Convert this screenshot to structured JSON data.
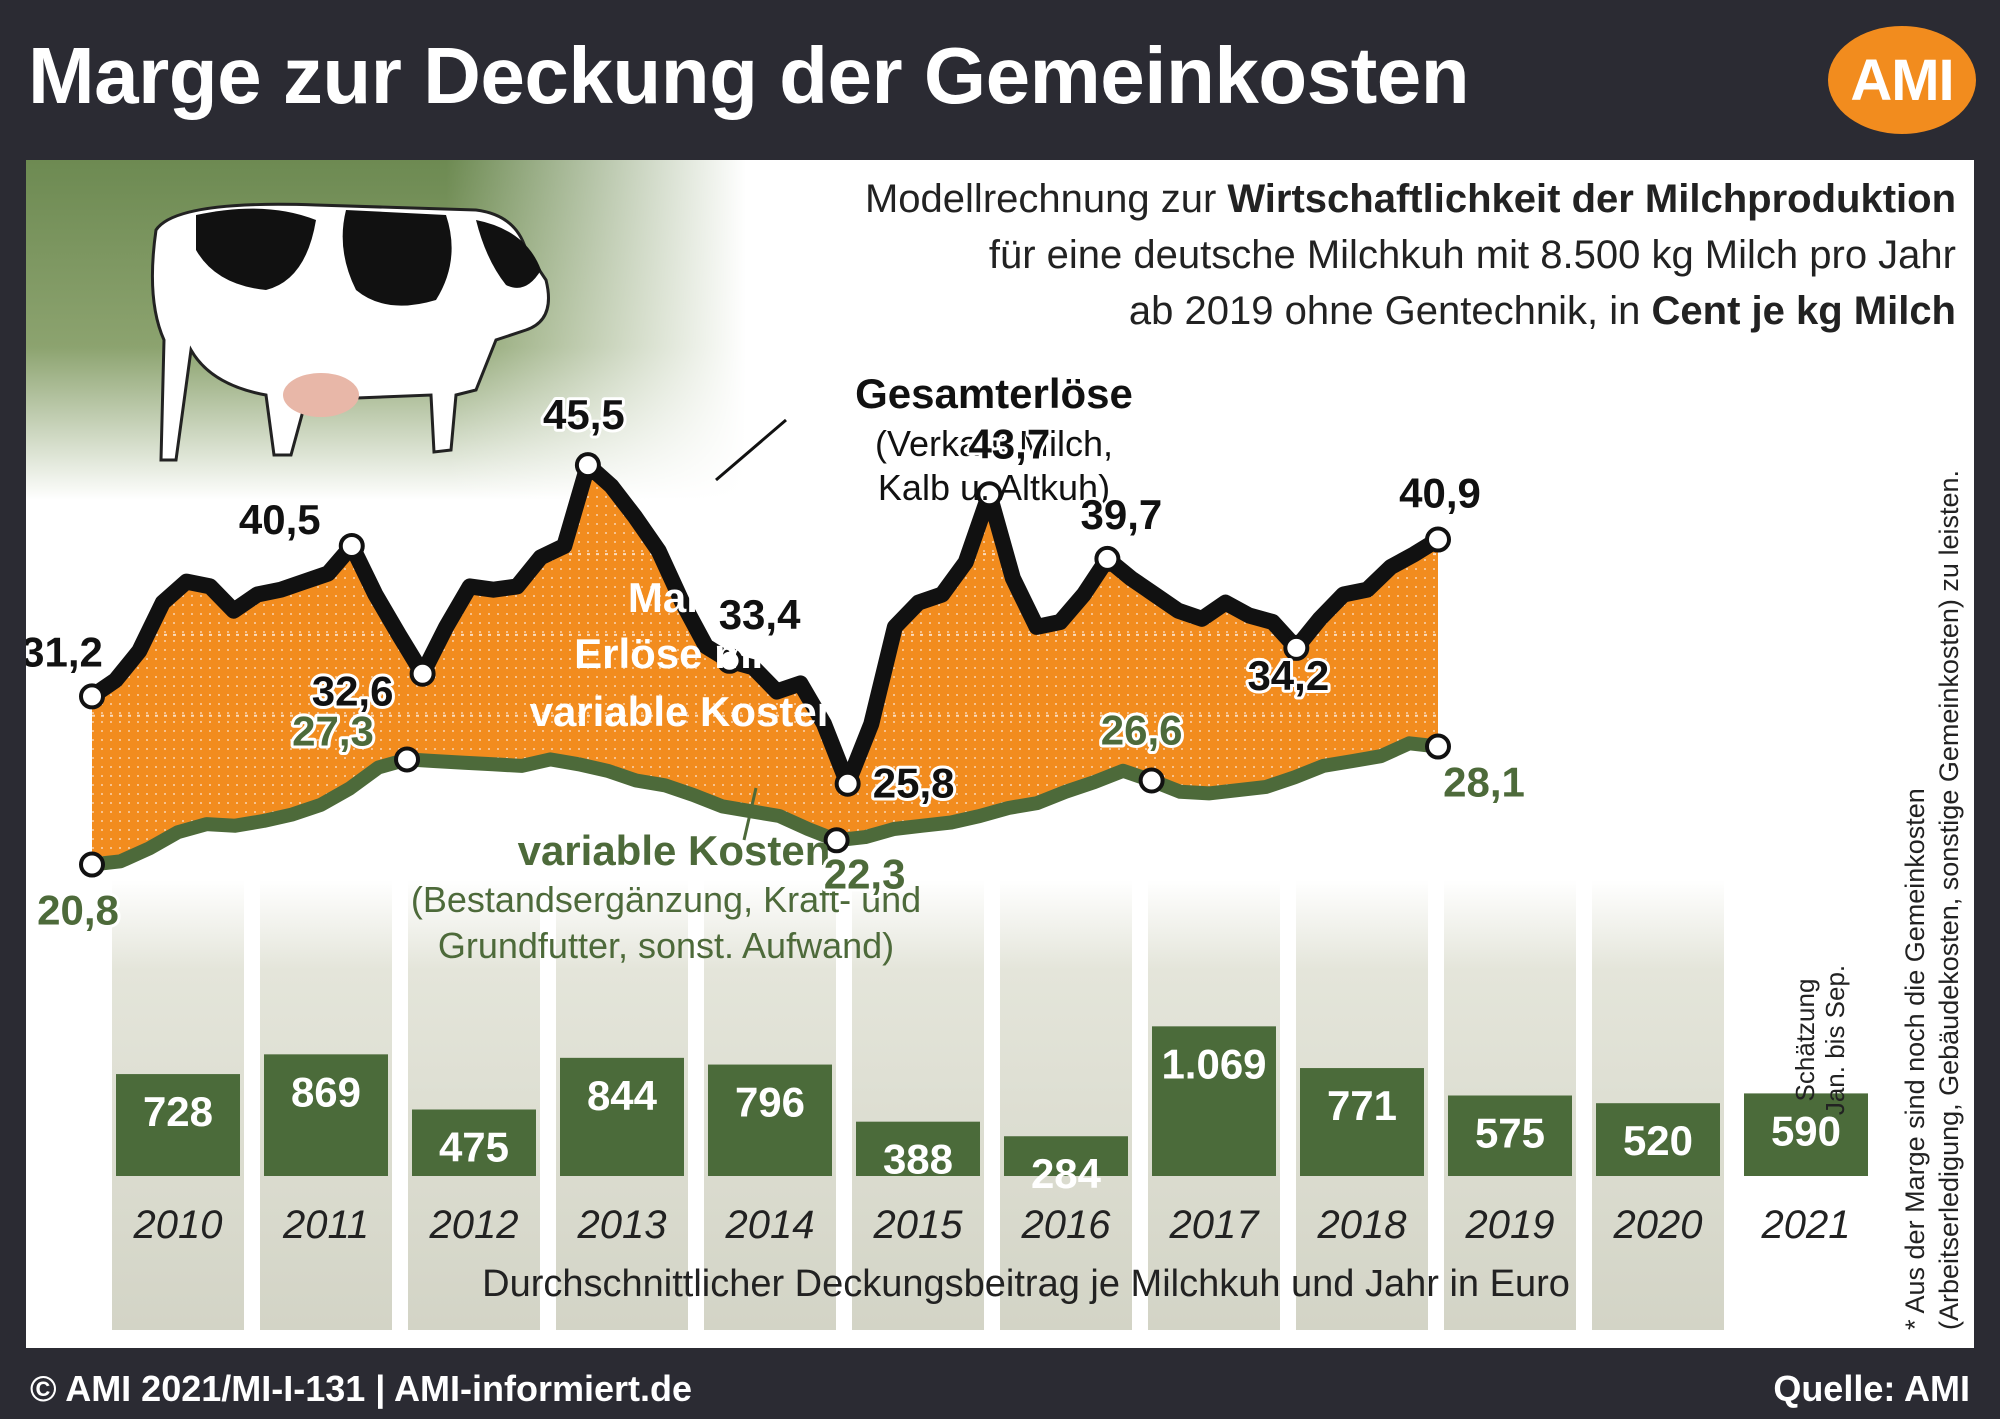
{
  "header": {
    "title": "Marge zur Deckung der Gemeinkosten",
    "logo_text": "AMI",
    "logo_color": "#f28c1e"
  },
  "subtitle": {
    "line1_normal": "Modellrechnung zur ",
    "line1_bold": "Wirtschaftlichkeit der Milchproduktion",
    "line2": "für eine deutsche Milchkuh mit 8.500 kg Milch pro Jahr",
    "line3_normal": "ab 2019 ohne Gentechnik, in ",
    "line3_bold": "Cent je kg Milch"
  },
  "annotations": {
    "revenue_title": "Gesamterlöse",
    "revenue_sub1": "(Verkauf Milch,",
    "revenue_sub2": "Kalb u. Altkuh)",
    "margin_line1": "Marge* =",
    "margin_line2": "Erlöse minus",
    "margin_line3": "variable Kosten",
    "cost_title": "variable Kosten",
    "cost_sub1": "(Bestandsergänzung, Kraft- und",
    "cost_sub2": "Grundfutter, sonst. Aufwand)",
    "bars_caption": "Durchschnittlicher Deckungsbeitrag je Milchkuh und Jahr in Euro",
    "estimate_line1": "Schätzung",
    "estimate_line2": "Jan. bis Sep.",
    "footnote_line1": "* Aus der Marge sind noch die Gemeinkosten",
    "footnote_line2": "(Arbeitserledigung, Gebäudekosten, sonstige Gemeinkosten) zu leisten."
  },
  "footer": {
    "left": "© AMI 2021/MI-I-131 | AMI-informiert.de",
    "right": "Quelle: AMI"
  },
  "colors": {
    "background": "#2b2b33",
    "margin_fill": "#f28c1e",
    "revenue_line": "#111111",
    "cost_line": "#4d6a3a",
    "bar_fill": "#4b6b3a",
    "year_column": "#d7d8cc"
  },
  "chart_data": [
    {
      "type": "area",
      "title": "",
      "xlabel": "",
      "ylabel": "",
      "x_range": [
        "Jan 2010",
        "Sep 2021"
      ],
      "series": [
        {
          "name": "Gesamterlöse",
          "values": [
            31.2,
            32.2,
            34.0,
            37.0,
            38.3,
            38.0,
            36.5,
            37.5,
            37.8,
            38.3,
            38.8,
            40.5,
            37.5,
            35.0,
            32.6,
            35.5,
            38.0,
            37.8,
            38.0,
            39.8,
            40.5,
            45.5,
            44.2,
            42.3,
            40.2,
            37.0,
            34.3,
            33.4,
            33.0,
            31.5,
            32.0,
            29.5,
            25.8,
            29.5,
            35.5,
            37.0,
            37.5,
            39.5,
            43.7,
            38.5,
            35.5,
            35.8,
            37.5,
            39.7,
            38.5,
            37.5,
            36.5,
            36.0,
            37.0,
            36.2,
            35.8,
            34.2,
            36.0,
            37.5,
            37.8,
            39.2,
            40.0,
            40.9
          ],
          "labeled_points": [
            {
              "value": "31,2"
            },
            {
              "value": "40,5"
            },
            {
              "value": "32,6"
            },
            {
              "value": "45,5"
            },
            {
              "value": "33,4"
            },
            {
              "value": "25,8"
            },
            {
              "value": "43,7"
            },
            {
              "value": "39,7"
            },
            {
              "value": "34,2"
            },
            {
              "value": "40,9"
            }
          ]
        },
        {
          "name": "variable Kosten",
          "values": [
            20.8,
            21.0,
            21.8,
            22.8,
            23.3,
            23.2,
            23.5,
            23.9,
            24.5,
            25.5,
            26.8,
            27.3,
            27.2,
            27.1,
            27.0,
            26.9,
            27.3,
            27.0,
            26.6,
            26.0,
            25.7,
            25.1,
            24.4,
            24.1,
            23.8,
            23.0,
            22.3,
            22.5,
            23.0,
            23.2,
            23.4,
            23.8,
            24.3,
            24.6,
            25.3,
            25.9,
            26.6,
            26.0,
            25.3,
            25.2,
            25.4,
            25.6,
            26.2,
            26.9,
            27.2,
            27.5,
            28.3,
            28.1
          ],
          "labeled_points": [
            {
              "value": "20,8"
            },
            {
              "value": "27,3"
            },
            {
              "value": "22,3"
            },
            {
              "value": "26,6"
            },
            {
              "value": "28,1"
            }
          ]
        }
      ],
      "fill_between": "Marge* = Erlöse minus variable Kosten",
      "unit": "Cent je kg Milch"
    },
    {
      "type": "bar",
      "title": "Durchschnittlicher Deckungsbeitrag je Milchkuh und Jahr in Euro",
      "categories": [
        "2010",
        "2011",
        "2012",
        "2013",
        "2014",
        "2015",
        "2016",
        "2017",
        "2018",
        "2019",
        "2020",
        "2021"
      ],
      "values": [
        728,
        869,
        475,
        844,
        796,
        388,
        284,
        1069,
        771,
        575,
        520,
        590
      ],
      "value_labels": [
        "728",
        "869",
        "475",
        "844",
        "796",
        "388",
        "284",
        "1.069",
        "771",
        "575",
        "520",
        "590"
      ],
      "unit": "Euro"
    }
  ]
}
